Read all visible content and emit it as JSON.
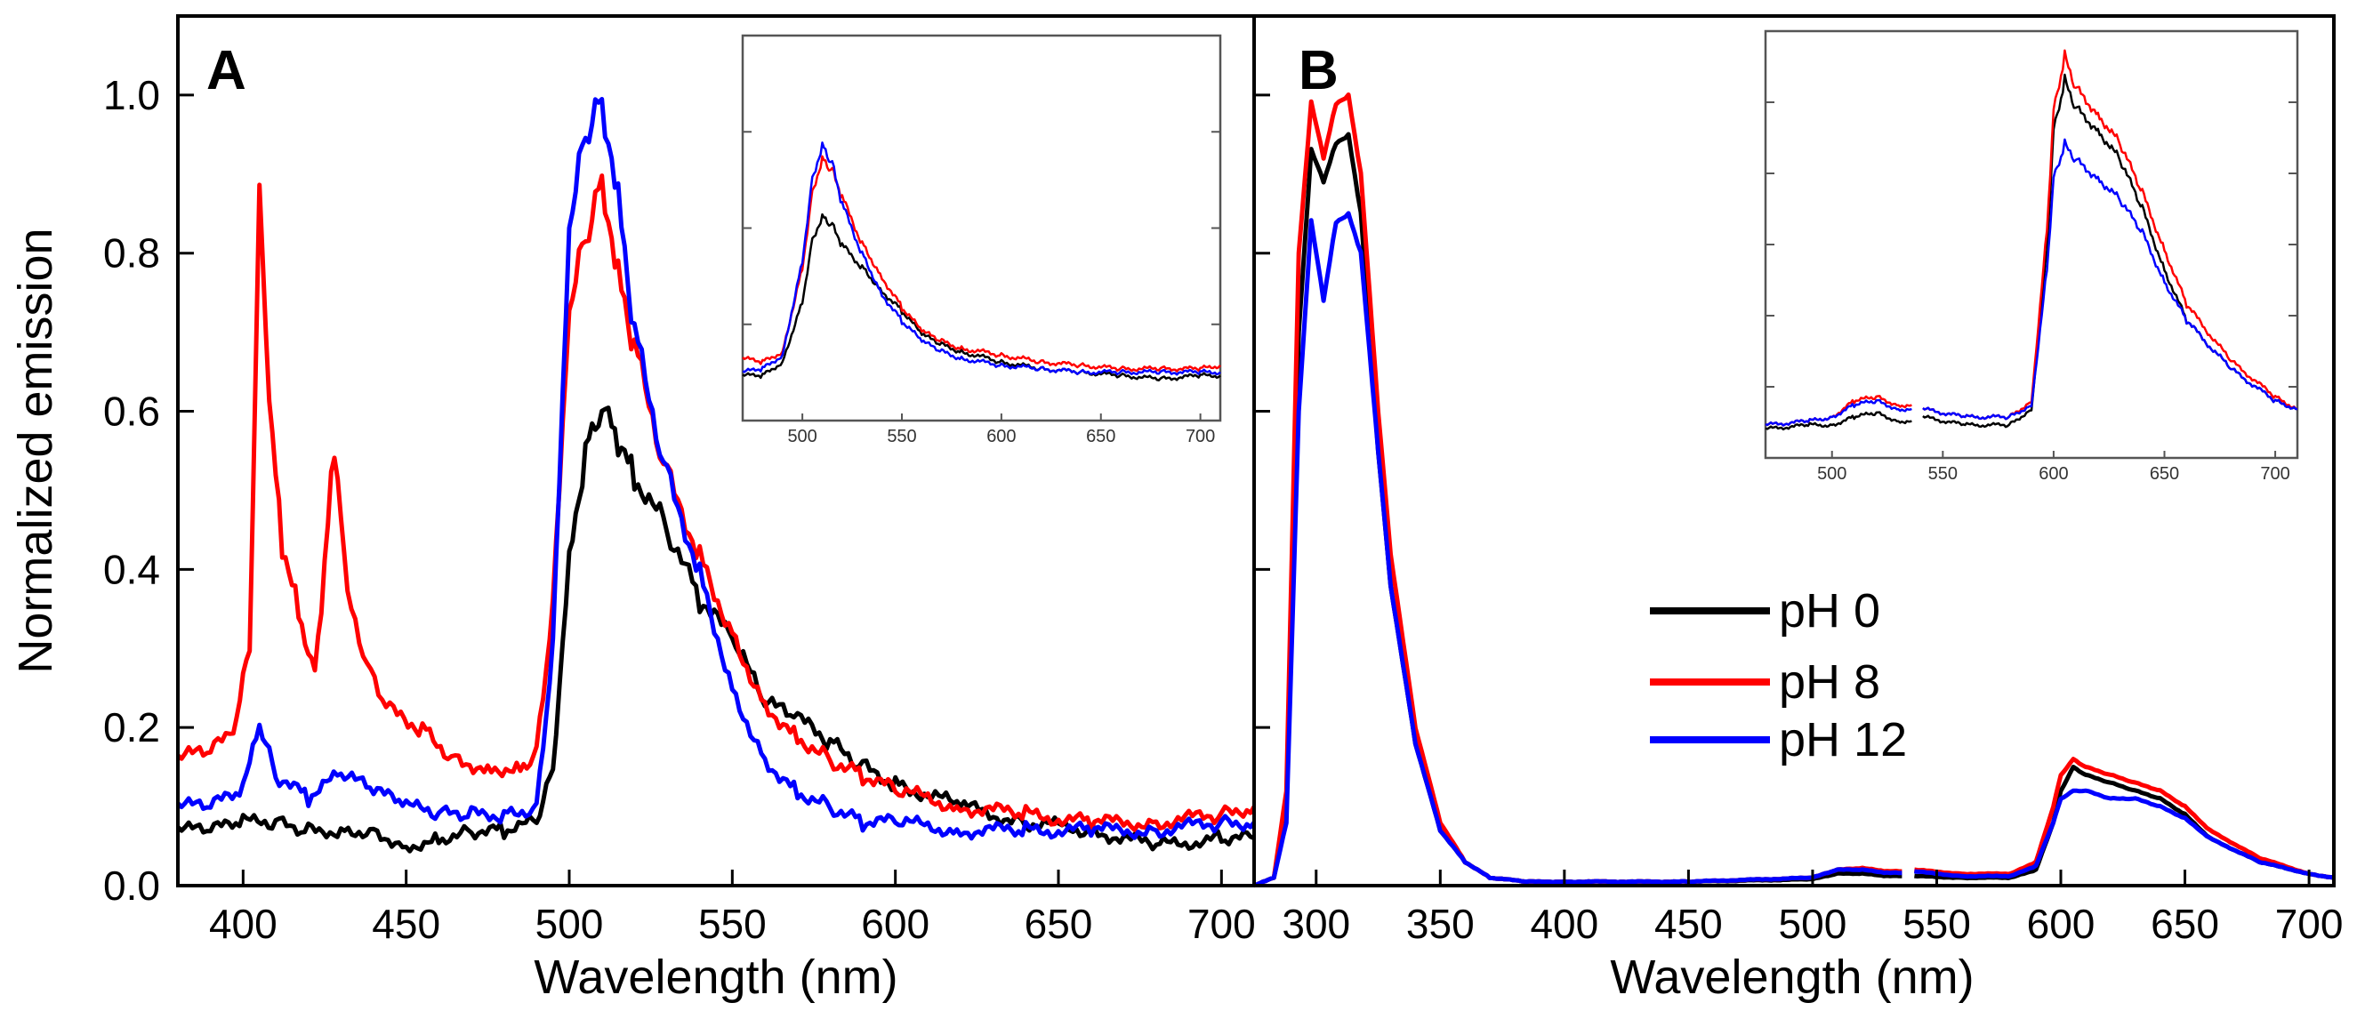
{
  "chart_data": [
    {
      "type": "line",
      "panel": "A",
      "xlabel": "Wavelength  (nm)",
      "ylabel": "Normalized  emission",
      "xlim": [
        380,
        710
      ],
      "ylim": [
        0,
        1.1
      ],
      "xticks": [
        400,
        450,
        500,
        550,
        600,
        650,
        700
      ],
      "yticks": [
        "0.0",
        "0.2",
        "0.4",
        "0.6",
        "0.8",
        "1.0"
      ],
      "grid": false,
      "series": [
        {
          "name": "pH 0",
          "color": "#000000",
          "x": [
            380,
            390,
            400,
            410,
            420,
            430,
            440,
            450,
            460,
            470,
            480,
            490,
            495,
            500,
            505,
            510,
            515,
            520,
            530,
            540,
            550,
            560,
            570,
            580,
            590,
            600,
            620,
            640,
            660,
            680,
            700,
            710
          ],
          "y": [
            0.07,
            0.07,
            0.08,
            0.08,
            0.07,
            0.07,
            0.07,
            0.05,
            0.06,
            0.07,
            0.07,
            0.08,
            0.15,
            0.42,
            0.55,
            0.6,
            0.56,
            0.52,
            0.45,
            0.36,
            0.31,
            0.23,
            0.21,
            0.18,
            0.15,
            0.13,
            0.1,
            0.08,
            0.07,
            0.05,
            0.06,
            0.06
          ]
        },
        {
          "name": "pH 8",
          "color": "#ff0000",
          "x": [
            380,
            390,
            397,
            402,
            405,
            408,
            412,
            417,
            422,
            425,
            428,
            432,
            438,
            445,
            455,
            465,
            475,
            485,
            490,
            495,
            500,
            505,
            510,
            515,
            520,
            530,
            540,
            550,
            560,
            570,
            580,
            590,
            600,
            620,
            640,
            660,
            680,
            700,
            710
          ],
          "y": [
            0.16,
            0.17,
            0.19,
            0.3,
            0.89,
            0.6,
            0.43,
            0.35,
            0.27,
            0.4,
            0.56,
            0.38,
            0.28,
            0.22,
            0.2,
            0.16,
            0.15,
            0.15,
            0.17,
            0.35,
            0.72,
            0.82,
            0.9,
            0.78,
            0.68,
            0.52,
            0.42,
            0.32,
            0.23,
            0.19,
            0.16,
            0.14,
            0.12,
            0.1,
            0.09,
            0.08,
            0.08,
            0.09,
            0.1
          ]
        },
        {
          "name": "pH 12",
          "color": "#0000ff",
          "x": [
            380,
            390,
            400,
            405,
            410,
            420,
            430,
            440,
            450,
            460,
            470,
            480,
            490,
            495,
            500,
            505,
            510,
            515,
            520,
            530,
            540,
            550,
            560,
            570,
            580,
            590,
            600,
            620,
            640,
            660,
            680,
            700,
            710
          ],
          "y": [
            0.1,
            0.1,
            0.12,
            0.2,
            0.14,
            0.11,
            0.14,
            0.12,
            0.1,
            0.09,
            0.09,
            0.09,
            0.1,
            0.3,
            0.82,
            0.95,
            1.0,
            0.88,
            0.7,
            0.52,
            0.4,
            0.25,
            0.16,
            0.12,
            0.1,
            0.08,
            0.08,
            0.07,
            0.07,
            0.07,
            0.07,
            0.08,
            0.08
          ]
        }
      ],
      "inset": {
        "xlim": [
          470,
          710
        ],
        "ylim": [
          0,
          1
        ],
        "xticks": [
          500,
          550,
          600,
          650,
          700
        ],
        "series": [
          {
            "name": "pH 0",
            "color": "#000000",
            "x": [
              470,
              480,
              490,
              500,
              505,
              510,
              515,
              520,
              530,
              540,
              550,
              560,
              570,
              580,
              600,
              620,
              640,
              660,
              680,
              700,
              710
            ],
            "y": [
              0.08,
              0.08,
              0.12,
              0.3,
              0.48,
              0.55,
              0.52,
              0.46,
              0.4,
              0.33,
              0.27,
              0.2,
              0.17,
              0.15,
              0.12,
              0.1,
              0.09,
              0.08,
              0.07,
              0.08,
              0.08
            ]
          },
          {
            "name": "pH 8",
            "color": "#ff0000",
            "x": [
              470,
              480,
              490,
              500,
              505,
              510,
              515,
              520,
              530,
              540,
              550,
              560,
              570,
              580,
              600,
              620,
              640,
              660,
              680,
              700,
              710
            ],
            "y": [
              0.13,
              0.12,
              0.15,
              0.4,
              0.62,
              0.72,
              0.68,
              0.6,
              0.47,
              0.37,
              0.28,
              0.21,
              0.18,
              0.16,
              0.14,
              0.12,
              0.11,
              0.1,
              0.1,
              0.1,
              0.11
            ]
          },
          {
            "name": "pH 12",
            "color": "#0000ff",
            "x": [
              470,
              480,
              490,
              500,
              505,
              510,
              515,
              520,
              530,
              540,
              550,
              560,
              570,
              580,
              600,
              620,
              640,
              660,
              680,
              700,
              710
            ],
            "y": [
              0.09,
              0.1,
              0.14,
              0.42,
              0.66,
              0.76,
              0.7,
              0.58,
              0.44,
              0.32,
              0.24,
              0.18,
              0.15,
              0.13,
              0.11,
              0.1,
              0.09,
              0.09,
              0.09,
              0.09,
              0.09
            ]
          }
        ]
      }
    },
    {
      "type": "line",
      "panel": "B",
      "xlabel": "Wavelength  (nm)",
      "xlim": [
        275,
        710
      ],
      "ylim": [
        0,
        1.1
      ],
      "xticks": [
        300,
        350,
        400,
        450,
        500,
        550,
        600,
        650,
        700
      ],
      "grid": false,
      "legend": {
        "position": "center-right",
        "entries": [
          "pH 0",
          "pH 8",
          "pH 12"
        ]
      },
      "series": [
        {
          "name": "pH 0",
          "color": "#000000",
          "segments": [
            {
              "x": [
                275,
                283,
                288,
                293,
                298,
                303,
                308,
                313,
                318,
                325,
                330,
                340,
                350,
                360,
                370,
                385,
                400,
                450,
                500,
                510,
                520,
                530,
                536
              ],
              "y": [
                0.0,
                0.01,
                0.1,
                0.7,
                0.93,
                0.89,
                0.94,
                0.95,
                0.85,
                0.55,
                0.38,
                0.18,
                0.07,
                0.03,
                0.01,
                0.005,
                0.005,
                0.005,
                0.008,
                0.015,
                0.015,
                0.012,
                0.012
              ]
            },
            {
              "x": [
                541,
                560,
                580,
                590,
                597,
                600,
                605,
                610,
                620,
                630,
                640,
                650,
                660,
                680,
                700,
                710
              ],
              "y": [
                0.012,
                0.01,
                0.01,
                0.02,
                0.08,
                0.12,
                0.15,
                0.14,
                0.13,
                0.12,
                0.11,
                0.09,
                0.06,
                0.03,
                0.015,
                0.01
              ]
            }
          ]
        },
        {
          "name": "pH 8",
          "color": "#ff0000",
          "segments": [
            {
              "x": [
                275,
                283,
                288,
                293,
                298,
                303,
                308,
                313,
                318,
                325,
                330,
                340,
                350,
                360,
                370,
                385,
                400,
                450,
                500,
                510,
                520,
                530,
                536
              ],
              "y": [
                0.0,
                0.01,
                0.12,
                0.8,
                0.99,
                0.92,
                0.99,
                1.0,
                0.9,
                0.6,
                0.42,
                0.2,
                0.08,
                0.03,
                0.01,
                0.005,
                0.005,
                0.005,
                0.01,
                0.02,
                0.022,
                0.018,
                0.018
              ]
            },
            {
              "x": [
                541,
                560,
                580,
                590,
                597,
                600,
                605,
                610,
                620,
                630,
                640,
                650,
                660,
                680,
                700,
                710
              ],
              "y": [
                0.02,
                0.015,
                0.015,
                0.03,
                0.1,
                0.14,
                0.16,
                0.15,
                0.14,
                0.13,
                0.12,
                0.1,
                0.07,
                0.035,
                0.015,
                0.01
              ]
            }
          ]
        },
        {
          "name": "pH 12",
          "color": "#0000ff",
          "segments": [
            {
              "x": [
                275,
                283,
                288,
                293,
                298,
                303,
                308,
                313,
                318,
                325,
                330,
                340,
                350,
                360,
                370,
                385,
                400,
                450,
                500,
                510,
                520,
                530,
                536
              ],
              "y": [
                0.0,
                0.01,
                0.08,
                0.6,
                0.84,
                0.74,
                0.84,
                0.85,
                0.8,
                0.55,
                0.38,
                0.18,
                0.07,
                0.03,
                0.01,
                0.005,
                0.005,
                0.005,
                0.01,
                0.02,
                0.02,
                0.016,
                0.016
              ]
            },
            {
              "x": [
                541,
                560,
                580,
                590,
                597,
                600,
                605,
                610,
                620,
                630,
                640,
                650,
                660,
                680,
                700,
                710
              ],
              "y": [
                0.018,
                0.012,
                0.012,
                0.025,
                0.08,
                0.11,
                0.12,
                0.12,
                0.11,
                0.11,
                0.1,
                0.085,
                0.06,
                0.03,
                0.015,
                0.01
              ]
            }
          ]
        }
      ],
      "inset": {
        "xlim": [
          470,
          710
        ],
        "ylim": [
          0,
          1
        ],
        "xticks": [
          500,
          550,
          600,
          650,
          700
        ],
        "series": [
          {
            "name": "pH 0",
            "color": "#000000",
            "segments": [
              {
                "x": [
                  470,
                  490,
                  500,
                  510,
                  520,
                  530,
                  536
                ],
                "y": [
                  0.05,
                  0.06,
                  0.06,
                  0.08,
                  0.09,
                  0.07,
                  0.07
                ]
              },
              {
                "x": [
                  541,
                  560,
                  580,
                  590,
                  597,
                  600,
                  605,
                  610,
                  620,
                  630,
                  640,
                  650,
                  660,
                  680,
                  700,
                  710
                ],
                "y": [
                  0.08,
                  0.06,
                  0.06,
                  0.1,
                  0.5,
                  0.8,
                  0.92,
                  0.85,
                  0.8,
                  0.72,
                  0.6,
                  0.45,
                  0.32,
                  0.2,
                  0.12,
                  0.1
                ]
              }
            ]
          },
          {
            "name": "pH 8",
            "color": "#ff0000",
            "segments": [
              {
                "x": [
                  470,
                  490,
                  500,
                  510,
                  520,
                  530,
                  536
                ],
                "y": [
                  0.06,
                  0.07,
                  0.08,
                  0.12,
                  0.13,
                  0.11,
                  0.11
                ]
              },
              {
                "x": [
                  541,
                  560,
                  580,
                  590,
                  597,
                  600,
                  605,
                  610,
                  620,
                  630,
                  640,
                  650,
                  660,
                  680,
                  700,
                  710
                ],
                "y": [
                  0.1,
                  0.08,
                  0.08,
                  0.12,
                  0.55,
                  0.85,
                  0.98,
                  0.9,
                  0.84,
                  0.76,
                  0.64,
                  0.5,
                  0.36,
                  0.22,
                  0.13,
                  0.1
                ]
              }
            ]
          },
          {
            "name": "pH 12",
            "color": "#0000ff",
            "segments": [
              {
                "x": [
                  470,
                  490,
                  500,
                  510,
                  520,
                  530,
                  536
                ],
                "y": [
                  0.06,
                  0.07,
                  0.08,
                  0.11,
                  0.12,
                  0.1,
                  0.1
                ]
              },
              {
                "x": [
                  541,
                  560,
                  580,
                  590,
                  597,
                  600,
                  605,
                  610,
                  620,
                  630,
                  640,
                  650,
                  660,
                  680,
                  700,
                  710
                ],
                "y": [
                  0.1,
                  0.08,
                  0.08,
                  0.11,
                  0.45,
                  0.68,
                  0.76,
                  0.72,
                  0.68,
                  0.62,
                  0.54,
                  0.42,
                  0.32,
                  0.2,
                  0.12,
                  0.1
                ]
              }
            ]
          }
        ]
      }
    }
  ]
}
